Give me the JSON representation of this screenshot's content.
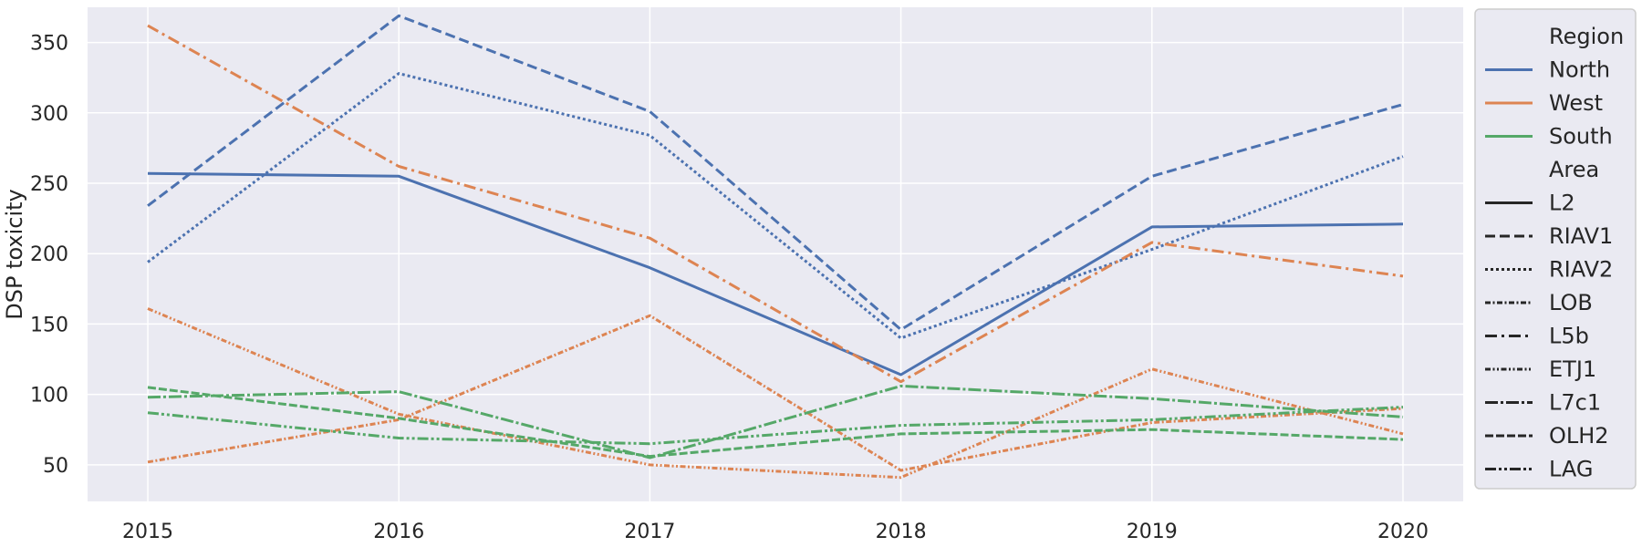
{
  "chart_data": {
    "type": "line",
    "title": "",
    "xlabel": "",
    "ylabel": "DSP toxicity",
    "x": [
      2015,
      2016,
      2017,
      2018,
      2019,
      2020
    ],
    "xticks": [
      "2015",
      "2016",
      "2017",
      "2018",
      "2019",
      "2020"
    ],
    "yticks": [
      50,
      100,
      150,
      200,
      250,
      300,
      350
    ],
    "xlim": [
      2014.76,
      2020.24
    ],
    "ylim": [
      24,
      375
    ],
    "grid": true,
    "legend_position": "right",
    "colors": {
      "North": "#4c72b0",
      "West": "#dd8452",
      "South": "#55a868",
      "background": "#eaeaf2",
      "grid": "#ffffff"
    },
    "legend": {
      "hue_title": "Region",
      "hue": [
        "North",
        "West",
        "South"
      ],
      "style_title": "Area",
      "style": [
        "L2",
        "RIAV1",
        "RIAV2",
        "LOB",
        "L5b",
        "ETJ1",
        "L7c1",
        "OLH2",
        "LAG"
      ]
    },
    "series": [
      {
        "region": "North",
        "area": "L2",
        "values": [
          257,
          255,
          190,
          114,
          219,
          221
        ]
      },
      {
        "region": "North",
        "area": "RIAV1",
        "values": [
          234,
          369,
          301,
          146,
          255,
          306
        ]
      },
      {
        "region": "North",
        "area": "RIAV2",
        "values": [
          194,
          328,
          284,
          140,
          203,
          269
        ]
      },
      {
        "region": "West",
        "area": "LOB",
        "values": [
          52,
          82,
          156,
          46,
          80,
          90
        ]
      },
      {
        "region": "West",
        "area": "L5b",
        "values": [
          362,
          262,
          211,
          109,
          208,
          184
        ]
      },
      {
        "region": "West",
        "area": "ETJ1",
        "values": [
          161,
          86,
          50,
          41,
          118,
          72
        ]
      },
      {
        "region": "South",
        "area": "L7c1",
        "values": [
          98,
          102,
          55,
          106,
          97,
          84
        ]
      },
      {
        "region": "South",
        "area": "OLH2",
        "values": [
          105,
          83,
          56,
          72,
          75,
          68
        ]
      },
      {
        "region": "South",
        "area": "LAG",
        "values": [
          87,
          69,
          65,
          78,
          82,
          91
        ]
      }
    ]
  }
}
